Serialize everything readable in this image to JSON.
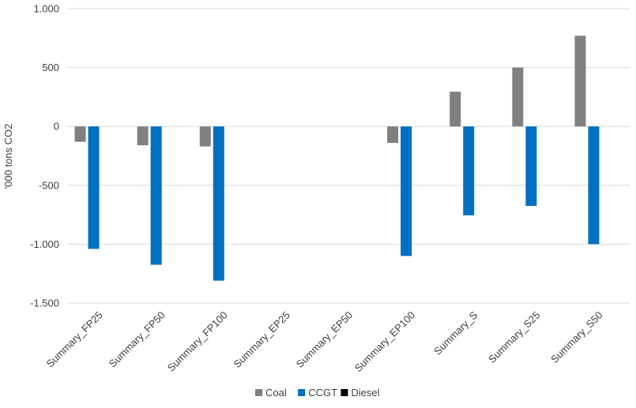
{
  "chart_data": {
    "type": "bar",
    "ylabel": "'000 tons CO2",
    "ylim": [
      -1500,
      1000
    ],
    "yticks": [
      1000,
      500,
      0,
      -500,
      -1000,
      -1500
    ],
    "ytick_labels": [
      "1.000",
      "500",
      "0",
      "-500",
      "-1.000",
      "-1.500"
    ],
    "grid": true,
    "legend_position": "bottom",
    "categories": [
      "Summary_FP25",
      "Summary_FP50",
      "Summary_FP100",
      "Summary_EP25",
      "Summary_EP50",
      "Summary_EP100",
      "Summary_S",
      "Summary_S25",
      "Summary_S50"
    ],
    "series": [
      {
        "name": "Coal",
        "color": "#808080",
        "values": [
          -130,
          -160,
          -170,
          0,
          0,
          -140,
          295,
          500,
          770
        ]
      },
      {
        "name": "CCGT",
        "color": "#0070C0",
        "values": [
          -1040,
          -1175,
          -1310,
          0,
          0,
          -1100,
          -755,
          -675,
          -1000
        ]
      },
      {
        "name": "Diesel",
        "color": "#000000",
        "values": [
          0,
          0,
          0,
          0,
          0,
          0,
          0,
          0,
          0
        ]
      }
    ]
  }
}
